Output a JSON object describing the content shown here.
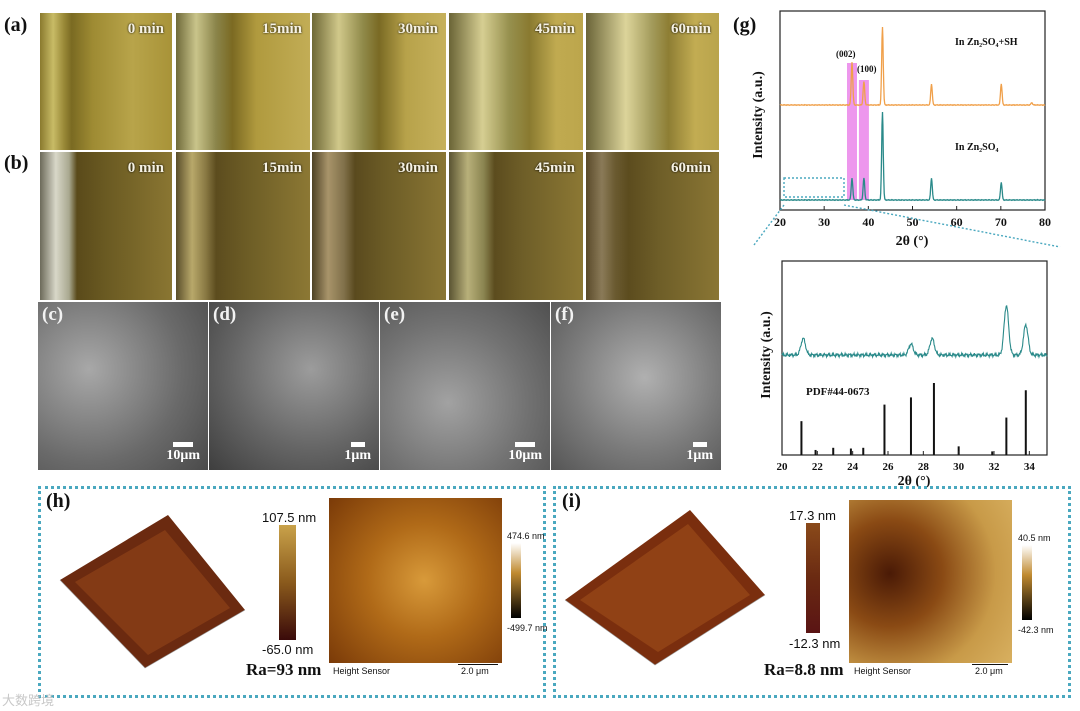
{
  "panels": {
    "a": "(a)",
    "b": "(b)",
    "c": "(c)",
    "d": "(d)",
    "e": "(e)",
    "f": "(f)",
    "g": "(g)",
    "h": "(h)",
    "i": "(i)"
  },
  "row_a_times": [
    "0 min",
    "15min",
    "30min",
    "45min",
    "60min"
  ],
  "row_b_times": [
    "0 min",
    "15min",
    "30min",
    "45min",
    "60min"
  ],
  "sem_scale": [
    "10μm",
    "1μm",
    "10μm",
    "1μm"
  ],
  "g_top": {
    "ylabel": "Intensity (a.u.)",
    "xlabel": "2θ (°)",
    "series_top_label": "In Zn₂SO₄+SH",
    "series_bottom_label": "In Zn₂SO₄",
    "peak_002": "(002)",
    "peak_100": "(100)",
    "xticks": [
      "20",
      "30",
      "40",
      "50",
      "60",
      "70",
      "80"
    ]
  },
  "g_bottom": {
    "ylabel": "Intensity (a.u.)",
    "xlabel": "2θ (°)",
    "pdf_label": "PDF#44-0673",
    "xticks": [
      "20",
      "22",
      "24",
      "26",
      "28",
      "30",
      "32",
      "34"
    ]
  },
  "h": {
    "cb_max": "107.5 nm",
    "cb_min": "-65.0 nm",
    "ra": "Ra=93 nm",
    "map_max": "474.6 nm",
    "map_min": "-499.7 nm",
    "sensor": "Height Sensor",
    "scale": "2.0 μm"
  },
  "i": {
    "cb_max": "17.3 nm",
    "cb_min": "-12.3 nm",
    "ra": "Ra=8.8 nm",
    "map_max": "40.5 nm",
    "map_min": "-42.3 nm",
    "sensor": "Height Sensor",
    "scale": "2.0 μm"
  },
  "watermark": "大数跨境",
  "chart_data": [
    {
      "type": "line",
      "xlabel": "2θ (°)",
      "ylabel": "Intensity (a.u.)",
      "xlim": [
        20,
        80
      ],
      "series": [
        {
          "name": "In Zn₂SO₄+SH",
          "color": "#f0a04a",
          "peaks_x": [
            36.3,
            39.0,
            43.2,
            54.3,
            70.1,
            77.0
          ],
          "peaks_rel_height": [
            0.55,
            0.3,
            1.0,
            0.27,
            0.27,
            0.03
          ]
        },
        {
          "name": "In Zn₂SO₄",
          "color": "#2a8a8a",
          "peaks_x": [
            36.3,
            39.0,
            43.2,
            54.3,
            70.1
          ],
          "peaks_rel_height": [
            0.25,
            0.25,
            1.0,
            0.25,
            0.2
          ]
        }
      ],
      "highlights": [
        {
          "label": "(002)",
          "x": 36.3
        },
        {
          "label": "(100)",
          "x": 39.0
        }
      ],
      "colors": {
        "highlight": "#e87de8"
      }
    },
    {
      "type": "line",
      "xlabel": "2θ (°)",
      "ylabel": "Intensity (a.u.)",
      "xlim": [
        20,
        35
      ],
      "series": [
        {
          "name": "",
          "color": "#2a8a8a",
          "peaks_x": [
            21.2,
            27.3,
            28.5,
            32.7,
            33.8
          ],
          "peaks_rel_height": [
            0.3,
            0.2,
            0.3,
            0.9,
            0.55
          ]
        }
      ],
      "reference": {
        "label": "PDF#44-0673",
        "sticks_x": [
          21.1,
          21.9,
          22.9,
          23.9,
          24.6,
          25.8,
          27.3,
          28.6,
          30.0,
          31.9,
          32.7,
          33.8
        ],
        "sticks_rel_height": [
          0.47,
          0.07,
          0.1,
          0.09,
          0.1,
          0.7,
          0.8,
          1.0,
          0.12,
          0.05,
          0.52,
          0.9
        ]
      }
    }
  ]
}
